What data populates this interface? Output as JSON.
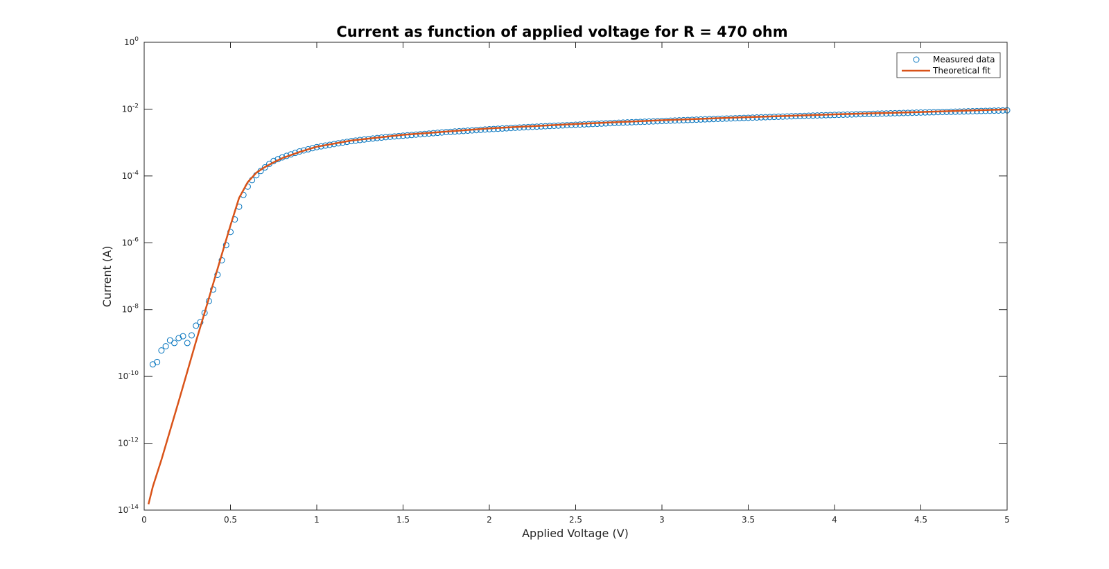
{
  "chart_data": {
    "type": "scatter",
    "title": "Current as function of applied voltage for R = 470 ohm",
    "xlabel": "Applied Voltage (V)",
    "ylabel": "Current (A)",
    "xlim": [
      0,
      5
    ],
    "ylim": [
      1e-14,
      1
    ],
    "yscale": "log",
    "grid": false,
    "legend_position": "top-right",
    "x_ticks": [
      "0",
      "0.5",
      "1",
      "1.5",
      "2",
      "2.5",
      "3",
      "3.5",
      "4",
      "4.5",
      "5"
    ],
    "y_ticks": [
      {
        "base": "10",
        "exp": "0"
      },
      {
        "base": "10",
        "exp": "-2"
      },
      {
        "base": "10",
        "exp": "-4"
      },
      {
        "base": "10",
        "exp": "-6"
      },
      {
        "base": "10",
        "exp": "-8"
      },
      {
        "base": "10",
        "exp": "-10"
      },
      {
        "base": "10",
        "exp": "-12"
      },
      {
        "base": "10",
        "exp": "-14"
      }
    ],
    "series": [
      {
        "name": "Measured data",
        "kind": "markers",
        "marker": "circle-open",
        "color": "#0072BD",
        "x_step": 0.025,
        "x_start": 0.05,
        "x_end": 5.0,
        "points": [
          [
            0.05,
            2.3e-10
          ],
          [
            0.075,
            2.7e-10
          ],
          [
            0.1,
            6e-10
          ],
          [
            0.125,
            8e-10
          ],
          [
            0.15,
            1.2e-09
          ],
          [
            0.175,
            1e-09
          ],
          [
            0.2,
            1.4e-09
          ],
          [
            0.225,
            1.6e-09
          ],
          [
            0.25,
            1e-09
          ],
          [
            0.275,
            1.7e-09
          ],
          [
            0.3,
            3.3e-09
          ],
          [
            0.325,
            4.2e-09
          ],
          [
            0.35,
            8e-09
          ],
          [
            0.375,
            1.8e-08
          ],
          [
            0.4,
            4e-08
          ],
          [
            0.425,
            1.1e-07
          ],
          [
            0.45,
            3e-07
          ],
          [
            0.475,
            8.5e-07
          ],
          [
            0.5,
            2.1e-06
          ],
          [
            0.525,
            5e-06
          ],
          [
            0.55,
            1.2e-05
          ],
          [
            0.575,
            2.7e-05
          ],
          [
            0.6,
            4.8e-05
          ],
          [
            0.625,
            7.5e-05
          ],
          [
            0.65,
            0.000105
          ],
          [
            0.675,
            0.00014
          ],
          [
            0.7,
            0.00018
          ],
          [
            0.725,
            0.00023
          ],
          [
            0.75,
            0.00028
          ],
          [
            0.8,
            0.00036
          ],
          [
            0.9,
            0.00054
          ],
          [
            1.0,
            0.00073
          ],
          [
            1.1,
            0.0009
          ],
          [
            1.2,
            0.0011
          ],
          [
            1.3,
            0.00128
          ],
          [
            1.4,
            0.00145
          ],
          [
            1.5,
            0.0016
          ],
          [
            1.75,
            0.00205
          ],
          [
            2.0,
            0.0025
          ],
          [
            2.25,
            0.00295
          ],
          [
            2.5,
            0.0034
          ],
          [
            2.75,
            0.0039
          ],
          [
            3.0,
            0.0044
          ],
          [
            3.25,
            0.00495
          ],
          [
            3.5,
            0.0055
          ],
          [
            3.75,
            0.0061
          ],
          [
            4.0,
            0.0067
          ],
          [
            4.25,
            0.0073
          ],
          [
            4.5,
            0.0079
          ],
          [
            4.75,
            0.0085
          ],
          [
            5.0,
            0.0092
          ]
        ]
      },
      {
        "name": "Theoretical fit",
        "kind": "line",
        "color": "#D95319",
        "points": [
          [
            0.025,
            1.5e-14
          ],
          [
            0.05,
            5e-14
          ],
          [
            0.1,
            3.2e-13
          ],
          [
            0.15,
            2.4e-12
          ],
          [
            0.2,
            1.8e-11
          ],
          [
            0.25,
            1.4e-10
          ],
          [
            0.3,
            1.1e-09
          ],
          [
            0.35,
            8e-09
          ],
          [
            0.4,
            6e-08
          ],
          [
            0.45,
            4.5e-07
          ],
          [
            0.5,
            3.3e-06
          ],
          [
            0.55,
            2.2e-05
          ],
          [
            0.6,
            6.5e-05
          ],
          [
            0.65,
            0.000125
          ],
          [
            0.7,
            0.000185
          ],
          [
            0.75,
            0.000255
          ],
          [
            0.8,
            0.00034
          ],
          [
            0.9,
            0.00052
          ],
          [
            1.0,
            0.00075
          ],
          [
            1.2,
            0.00115
          ],
          [
            1.5,
            0.0017
          ],
          [
            2.0,
            0.00265
          ],
          [
            2.5,
            0.0036
          ],
          [
            3.0,
            0.00465
          ],
          [
            3.5,
            0.00575
          ],
          [
            4.0,
            0.00695
          ],
          [
            4.5,
            0.0082
          ],
          [
            5.0,
            0.0098
          ]
        ]
      }
    ]
  }
}
